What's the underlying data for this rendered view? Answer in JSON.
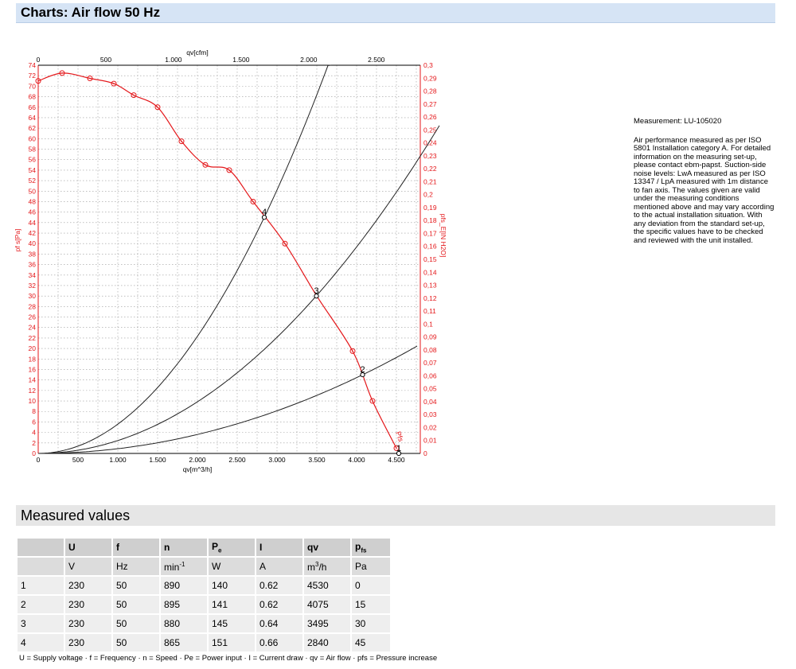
{
  "header": {
    "title": "Charts: Air flow 50 Hz"
  },
  "info": {
    "measurement": "Measurement: LU-105020",
    "text": "Air performance measured as per ISO 5801 Installation category A. For detailed information on the measuring set-up, please contact ebm-papst. Suction-side noise levels: LwA measured as per ISO 13347 / LpA measured with 1m distance to fan axis. The values given are valid under the measuring conditions mentioned above and may vary according to the actual installation situation. With any deviation from the standard set-up, the specific values have to be checked and reviewed with the unit installed."
  },
  "chart_data": {
    "type": "line",
    "xlabel": "qv[m^3/h]",
    "x2label": "qv[cfm]",
    "ylabel": "pf s[Pa]",
    "y2label": "pfs_E[IN H2O]",
    "xlim": [
      0,
      4800
    ],
    "ylim": [
      0,
      74
    ],
    "x2lim": [
      0,
      2825
    ],
    "y2lim": [
      0,
      0.3
    ],
    "x_ticks": [
      "0",
      "500",
      "1.000",
      "1.500",
      "2.000",
      "2.500",
      "3.000",
      "3.500",
      "4.000",
      "4.500"
    ],
    "x2_ticks": [
      "0",
      "500",
      "1.000",
      "1.500",
      "2.000",
      "2.500"
    ],
    "y_ticks": [
      "0",
      "2",
      "4",
      "6",
      "8",
      "10",
      "12",
      "14",
      "16",
      "18",
      "20",
      "22",
      "24",
      "26",
      "28",
      "30",
      "32",
      "34",
      "36",
      "38",
      "40",
      "42",
      "44",
      "46",
      "48",
      "50",
      "52",
      "54",
      "56",
      "58",
      "60",
      "62",
      "64",
      "66",
      "68",
      "70",
      "72",
      "74"
    ],
    "y2_ticks": [
      "0",
      "0,01",
      "0,02",
      "0,03",
      "0,04",
      "0,05",
      "0,06",
      "0,07",
      "0,08",
      "0,09",
      "0,1",
      "0,11",
      "0,12",
      "0,13",
      "0,14",
      "0,15",
      "0,16",
      "0,17",
      "0,18",
      "0,19",
      "0,2",
      "0,21",
      "0,22",
      "0,23",
      "0,24",
      "0,25",
      "0,26",
      "0,27",
      "0,28",
      "0,29",
      "0,3"
    ],
    "grid": true,
    "curve_label": "Pfs",
    "fan_curve": {
      "x": [
        0,
        300,
        650,
        950,
        1200,
        1500,
        1800,
        2100,
        2400,
        2700,
        3100,
        3500,
        3950,
        4200,
        4500
      ],
      "y": [
        71,
        72.5,
        71.5,
        70.5,
        68.3,
        66,
        59.5,
        55,
        54,
        48,
        40,
        30,
        19.5,
        10,
        1
      ]
    },
    "markers": {
      "x": [
        0,
        300,
        650,
        950,
        1200,
        1500,
        1800,
        2100,
        2400,
        2700,
        3100,
        3950,
        4200,
        4500
      ],
      "y": [
        71,
        72.5,
        71.5,
        70.5,
        68.3,
        66,
        59.5,
        55,
        54,
        48,
        40,
        19.5,
        10,
        1
      ]
    },
    "system_curves": [
      {
        "label": "4",
        "k": 5.58e-06,
        "xmax": 3900
      },
      {
        "label": "3",
        "k": 2.46e-06,
        "xmax": 5040
      },
      {
        "label": "2",
        "k": 9.03e-07,
        "xmax": 4780
      }
    ],
    "operating_points": [
      {
        "label": "1",
        "x": 4530,
        "y": 0
      },
      {
        "label": "2",
        "x": 4075,
        "y": 15
      },
      {
        "label": "3",
        "x": 3495,
        "y": 30
      },
      {
        "label": "4",
        "x": 2840,
        "y": 45
      }
    ]
  },
  "measured": {
    "title": "Measured values",
    "headers": [
      "",
      "U",
      "f",
      "n",
      "P",
      "I",
      "qv",
      "p"
    ],
    "header_subs": [
      "",
      "",
      "",
      "",
      "e",
      "",
      "",
      "fs"
    ],
    "units": [
      "",
      "V",
      "Hz",
      "min",
      "W",
      "A",
      "m",
      "Pa"
    ],
    "unit_sups": [
      "",
      "",
      "",
      "-1",
      "",
      "",
      "3",
      ""
    ],
    "unit_tails": [
      "",
      "",
      "",
      "",
      "",
      "",
      "/h",
      ""
    ],
    "rows": [
      [
        "1",
        "230",
        "50",
        "890",
        "140",
        "0.62",
        "4530",
        "0"
      ],
      [
        "2",
        "230",
        "50",
        "895",
        "141",
        "0.62",
        "4075",
        "15"
      ],
      [
        "3",
        "230",
        "50",
        "880",
        "145",
        "0.64",
        "3495",
        "30"
      ],
      [
        "4",
        "230",
        "50",
        "865",
        "151",
        "0.66",
        "2840",
        "45"
      ]
    ],
    "footnote": "U = Supply voltage · f = Frequency · n = Speed · Pe = Power input · I = Current draw · qv = Air flow · pfs = Pressure increase"
  }
}
